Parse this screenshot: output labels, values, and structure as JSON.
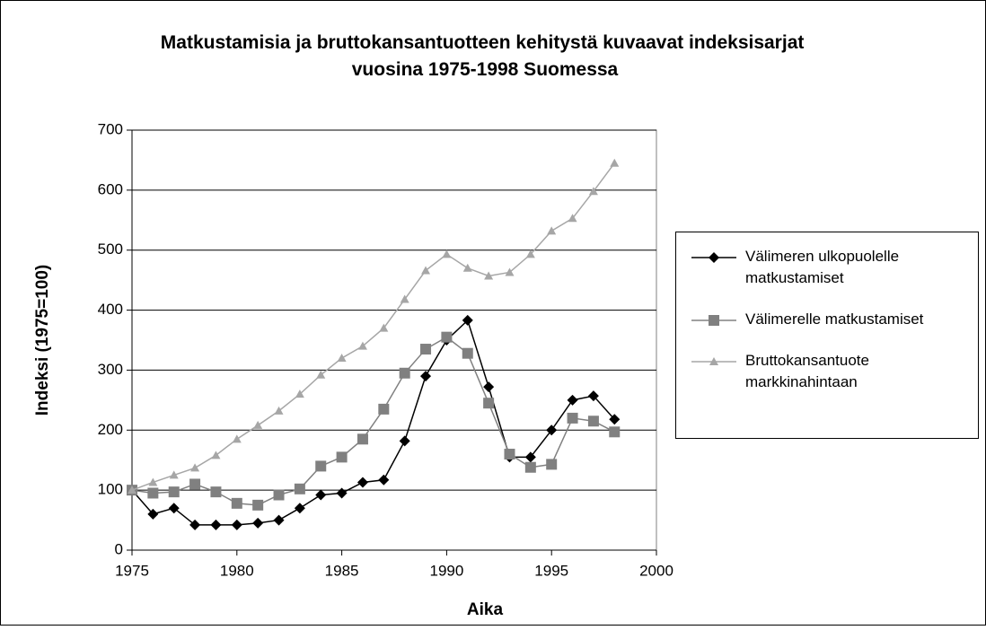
{
  "chart_data": {
    "type": "line",
    "title": "Matkustamisia ja bruttokansantuotteen kehitystä kuvaavat indeksisarjat vuosina 1975-1998 Suomessa",
    "x_label": "Aika",
    "y_label": "Indeksi (1975=100)",
    "x": [
      1975,
      1976,
      1977,
      1978,
      1979,
      1980,
      1981,
      1982,
      1983,
      1984,
      1985,
      1986,
      1987,
      1988,
      1989,
      1990,
      1991,
      1992,
      1993,
      1994,
      1995,
      1996,
      1997,
      1998
    ],
    "series": [
      {
        "name": "Välimeren ulkopuolelle matkustamiset",
        "color": "#000000",
        "marker": "diamond",
        "values": [
          100,
          60,
          70,
          42,
          42,
          42,
          45,
          50,
          70,
          92,
          95,
          113,
          117,
          182,
          290,
          350,
          383,
          272,
          155,
          155,
          200,
          250,
          257,
          218
        ]
      },
      {
        "name": "Välimerelle matkustamiset",
        "color": "#808080",
        "marker": "square",
        "values": [
          100,
          95,
          97,
          110,
          97,
          78,
          75,
          92,
          102,
          140,
          155,
          185,
          235,
          295,
          335,
          355,
          328,
          245,
          160,
          138,
          143,
          220,
          215,
          197
        ]
      },
      {
        "name": "Bruttokansantuote markkinahintaan",
        "color": "#a6a6a6",
        "marker": "triangle",
        "values": [
          100,
          113,
          125,
          137,
          158,
          185,
          208,
          232,
          260,
          292,
          320,
          340,
          370,
          418,
          466,
          493,
          470,
          457,
          463,
          493,
          532,
          553,
          598,
          645
        ]
      }
    ],
    "xlim": [
      1975,
      2000
    ],
    "xticks": [
      1975,
      1980,
      1985,
      1990,
      1995,
      2000
    ],
    "ylim": [
      0,
      700
    ],
    "yticks": [
      0,
      100,
      200,
      300,
      400,
      500,
      600,
      700
    ],
    "grid": true,
    "legend": "right"
  }
}
